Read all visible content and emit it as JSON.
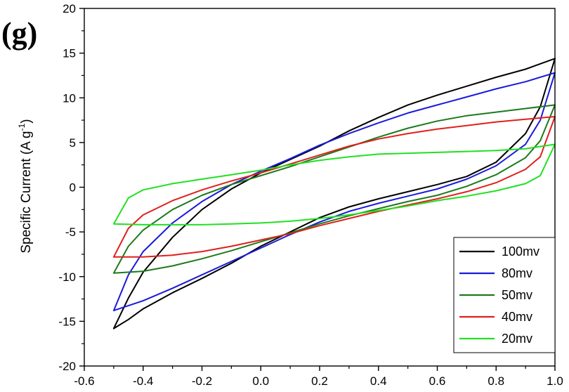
{
  "panel_label": "(g)",
  "chart_data": {
    "type": "line",
    "title": "",
    "xlabel": "",
    "ylabel": "Specific Current (A g",
    "ylabel_superscript": "-1",
    "ylabel_suffix": ")",
    "xlim": [
      -0.6,
      1.0
    ],
    "ylim": [
      -20,
      20
    ],
    "x_ticks": [
      -0.6,
      -0.4,
      -0.2,
      0.0,
      0.2,
      0.4,
      0.6,
      0.8,
      1.0
    ],
    "x_tick_labels": [
      "-0.6",
      "-0.4",
      "-0.2",
      "0.0",
      "0.2",
      "0.4",
      "0.6",
      "0.8",
      "1.0"
    ],
    "y_ticks": [
      -20,
      -15,
      -10,
      -5,
      0,
      5,
      10,
      15,
      20
    ],
    "y_tick_labels": [
      "-20",
      "-15",
      "-10",
      "-5",
      "0",
      "5",
      "10",
      "15",
      "20"
    ],
    "grid": false,
    "legend_position": "bottom-right",
    "series": [
      {
        "name": "100mv",
        "color": "#000000",
        "forward": [
          [
            -0.5,
            -15.8
          ],
          [
            -0.45,
            -14.8
          ],
          [
            -0.4,
            -13.6
          ],
          [
            -0.3,
            -11.8
          ],
          [
            -0.2,
            -10.2
          ],
          [
            -0.1,
            -8.5
          ],
          [
            0.0,
            -6.6
          ],
          [
            0.1,
            -5.0
          ],
          [
            0.2,
            -3.4
          ],
          [
            0.3,
            -2.2
          ],
          [
            0.4,
            -1.3
          ],
          [
            0.5,
            -0.5
          ],
          [
            0.6,
            0.3
          ],
          [
            0.7,
            1.2
          ],
          [
            0.8,
            2.8
          ],
          [
            0.9,
            6.0
          ],
          [
            0.95,
            9.0
          ],
          [
            1.0,
            14.4
          ]
        ],
        "reverse": [
          [
            1.0,
            14.4
          ],
          [
            0.9,
            13.2
          ],
          [
            0.8,
            12.3
          ],
          [
            0.7,
            11.3
          ],
          [
            0.6,
            10.3
          ],
          [
            0.5,
            9.2
          ],
          [
            0.4,
            7.8
          ],
          [
            0.3,
            6.3
          ],
          [
            0.2,
            4.6
          ],
          [
            0.1,
            3.1
          ],
          [
            0.0,
            1.6
          ],
          [
            -0.1,
            -0.2
          ],
          [
            -0.2,
            -2.5
          ],
          [
            -0.3,
            -5.6
          ],
          [
            -0.4,
            -9.5
          ],
          [
            -0.45,
            -12.4
          ],
          [
            -0.5,
            -15.8
          ]
        ]
      },
      {
        "name": "80mv",
        "color": "#1a1adc",
        "forward": [
          [
            -0.5,
            -13.8
          ],
          [
            -0.4,
            -12.7
          ],
          [
            -0.3,
            -11.3
          ],
          [
            -0.2,
            -9.8
          ],
          [
            -0.1,
            -8.3
          ],
          [
            0.0,
            -6.8
          ],
          [
            0.1,
            -5.3
          ],
          [
            0.2,
            -3.9
          ],
          [
            0.3,
            -2.7
          ],
          [
            0.4,
            -1.8
          ],
          [
            0.5,
            -1.0
          ],
          [
            0.6,
            -0.2
          ],
          [
            0.7,
            0.9
          ],
          [
            0.8,
            2.4
          ],
          [
            0.9,
            4.8
          ],
          [
            0.95,
            7.5
          ],
          [
            1.0,
            12.8
          ]
        ],
        "reverse": [
          [
            1.0,
            12.8
          ],
          [
            0.9,
            11.8
          ],
          [
            0.8,
            11.0
          ],
          [
            0.7,
            10.1
          ],
          [
            0.6,
            9.2
          ],
          [
            0.5,
            8.3
          ],
          [
            0.4,
            7.2
          ],
          [
            0.3,
            6.0
          ],
          [
            0.2,
            4.7
          ],
          [
            0.1,
            3.2
          ],
          [
            0.0,
            1.8
          ],
          [
            -0.1,
            0.3
          ],
          [
            -0.2,
            -1.6
          ],
          [
            -0.3,
            -4.0
          ],
          [
            -0.4,
            -7.2
          ],
          [
            -0.45,
            -9.8
          ],
          [
            -0.5,
            -13.8
          ]
        ]
      },
      {
        "name": "50mv",
        "color": "#1c7a1c",
        "forward": [
          [
            -0.5,
            -9.6
          ],
          [
            -0.4,
            -9.4
          ],
          [
            -0.3,
            -8.8
          ],
          [
            -0.2,
            -8.0
          ],
          [
            -0.1,
            -7.1
          ],
          [
            0.0,
            -6.1
          ],
          [
            0.1,
            -5.1
          ],
          [
            0.2,
            -4.1
          ],
          [
            0.3,
            -3.2
          ],
          [
            0.4,
            -2.4
          ],
          [
            0.5,
            -1.6
          ],
          [
            0.6,
            -0.9
          ],
          [
            0.7,
            0.1
          ],
          [
            0.8,
            1.4
          ],
          [
            0.9,
            3.3
          ],
          [
            0.95,
            5.2
          ],
          [
            1.0,
            9.2
          ]
        ],
        "reverse": [
          [
            1.0,
            9.2
          ],
          [
            0.9,
            8.8
          ],
          [
            0.8,
            8.4
          ],
          [
            0.7,
            8.0
          ],
          [
            0.6,
            7.4
          ],
          [
            0.5,
            6.6
          ],
          [
            0.4,
            5.6
          ],
          [
            0.3,
            4.5
          ],
          [
            0.2,
            3.4
          ],
          [
            0.1,
            2.3
          ],
          [
            0.0,
            1.3
          ],
          [
            -0.1,
            0.3
          ],
          [
            -0.2,
            -0.9
          ],
          [
            -0.3,
            -2.5
          ],
          [
            -0.4,
            -4.8
          ],
          [
            -0.45,
            -6.6
          ],
          [
            -0.5,
            -9.6
          ]
        ]
      },
      {
        "name": "40mv",
        "color": "#e0201c",
        "forward": [
          [
            -0.5,
            -7.8
          ],
          [
            -0.4,
            -7.8
          ],
          [
            -0.3,
            -7.6
          ],
          [
            -0.2,
            -7.2
          ],
          [
            -0.1,
            -6.6
          ],
          [
            0.0,
            -5.9
          ],
          [
            0.1,
            -5.2
          ],
          [
            0.2,
            -4.3
          ],
          [
            0.3,
            -3.5
          ],
          [
            0.4,
            -2.7
          ],
          [
            0.5,
            -2.0
          ],
          [
            0.6,
            -1.3
          ],
          [
            0.7,
            -0.5
          ],
          [
            0.8,
            0.5
          ],
          [
            0.9,
            2.0
          ],
          [
            0.95,
            3.4
          ],
          [
            1.0,
            7.9
          ]
        ],
        "reverse": [
          [
            1.0,
            7.9
          ],
          [
            0.9,
            7.6
          ],
          [
            0.8,
            7.3
          ],
          [
            0.7,
            6.9
          ],
          [
            0.6,
            6.5
          ],
          [
            0.5,
            6.0
          ],
          [
            0.4,
            5.4
          ],
          [
            0.3,
            4.6
          ],
          [
            0.2,
            3.6
          ],
          [
            0.1,
            2.6
          ],
          [
            0.0,
            1.6
          ],
          [
            -0.1,
            0.7
          ],
          [
            -0.2,
            -0.3
          ],
          [
            -0.3,
            -1.5
          ],
          [
            -0.4,
            -3.1
          ],
          [
            -0.45,
            -4.6
          ],
          [
            -0.5,
            -7.8
          ]
        ]
      },
      {
        "name": "20mv",
        "color": "#22e022",
        "forward": [
          [
            -0.5,
            -4.1
          ],
          [
            -0.4,
            -4.2
          ],
          [
            -0.3,
            -4.2
          ],
          [
            -0.2,
            -4.2
          ],
          [
            -0.1,
            -4.1
          ],
          [
            0.0,
            -4.0
          ],
          [
            0.1,
            -3.8
          ],
          [
            0.2,
            -3.5
          ],
          [
            0.3,
            -3.1
          ],
          [
            0.4,
            -2.6
          ],
          [
            0.5,
            -2.1
          ],
          [
            0.6,
            -1.5
          ],
          [
            0.7,
            -1.0
          ],
          [
            0.8,
            -0.4
          ],
          [
            0.9,
            0.4
          ],
          [
            0.95,
            1.3
          ],
          [
            1.0,
            4.8
          ]
        ],
        "reverse": [
          [
            1.0,
            4.8
          ],
          [
            0.9,
            4.3
          ],
          [
            0.8,
            4.1
          ],
          [
            0.7,
            4.0
          ],
          [
            0.6,
            3.9
          ],
          [
            0.5,
            3.8
          ],
          [
            0.4,
            3.7
          ],
          [
            0.3,
            3.4
          ],
          [
            0.2,
            3.0
          ],
          [
            0.1,
            2.5
          ],
          [
            0.0,
            1.9
          ],
          [
            -0.1,
            1.4
          ],
          [
            -0.2,
            0.9
          ],
          [
            -0.3,
            0.4
          ],
          [
            -0.4,
            -0.3
          ],
          [
            -0.45,
            -1.2
          ],
          [
            -0.5,
            -4.1
          ]
        ]
      }
    ]
  }
}
